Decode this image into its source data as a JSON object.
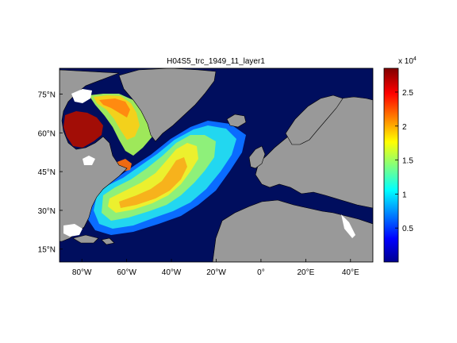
{
  "chart_data": {
    "type": "heatmap",
    "title": "H04S5_trc_1949_11_layer1",
    "xlabel": "",
    "ylabel": "",
    "x_range": [
      -90,
      50
    ],
    "y_range": [
      10,
      85
    ],
    "x_ticks": [
      {
        "value": -80,
        "label": "80°W"
      },
      {
        "value": -60,
        "label": "60°W"
      },
      {
        "value": -40,
        "label": "40°W"
      },
      {
        "value": -20,
        "label": "20°W"
      },
      {
        "value": 0,
        "label": "0°"
      },
      {
        "value": 20,
        "label": "20°E"
      },
      {
        "value": 40,
        "label": "40°E"
      }
    ],
    "y_ticks": [
      {
        "value": 15,
        "label": "15°N"
      },
      {
        "value": 30,
        "label": "30°N"
      },
      {
        "value": 45,
        "label": "45°N"
      },
      {
        "value": 60,
        "label": "60°N"
      },
      {
        "value": 75,
        "label": "75°N"
      }
    ],
    "colorbar": {
      "range": [
        0,
        28500
      ],
      "multiplier_label": "x 10",
      "multiplier_exponent": "4",
      "ticks": [
        {
          "value": 5000,
          "label": "0.5"
        },
        {
          "value": 10000,
          "label": "1"
        },
        {
          "value": 15000,
          "label": "1.5"
        },
        {
          "value": 20000,
          "label": "2"
        },
        {
          "value": 25000,
          "label": "2.5"
        }
      ],
      "colormap": "jet"
    },
    "grid": false,
    "colors": {
      "land": "#999999",
      "ocean_zero": "#000e5e",
      "missing": "#ffffff"
    }
  }
}
